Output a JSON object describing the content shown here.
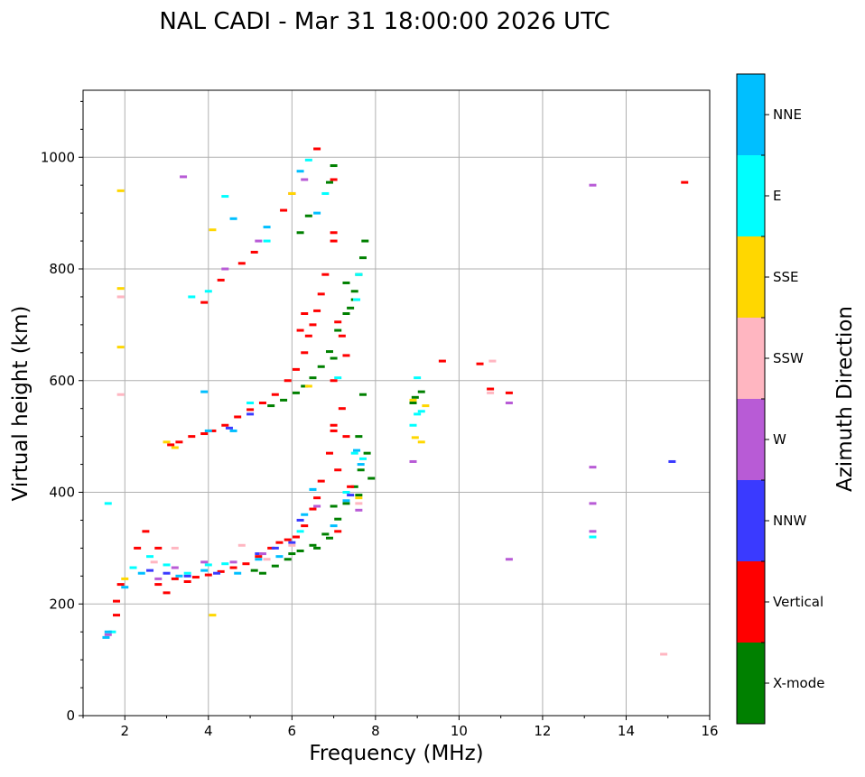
{
  "chart_data": {
    "type": "scatter",
    "title": "NAL CADI - Mar 31 18:00:00 2026 UTC",
    "xlabel": "Frequency (MHz)",
    "ylabel": "Virtual height (km)",
    "xlim": [
      1,
      16
    ],
    "ylim": [
      0,
      1120
    ],
    "xticks": [
      2,
      4,
      6,
      8,
      10,
      12,
      14,
      16
    ],
    "yticks": [
      0,
      200,
      400,
      600,
      800,
      1000
    ],
    "grid": true,
    "colorbar": {
      "label": "Azimuth Direction",
      "categories": [
        {
          "name": "X-mode",
          "color": "#008000"
        },
        {
          "name": "Vertical",
          "color": "#ff0000"
        },
        {
          "name": "NNW",
          "color": "#3a3aff"
        },
        {
          "name": "W",
          "color": "#b85bd6"
        },
        {
          "name": "SSW",
          "color": "#ffb6c1"
        },
        {
          "name": "SSE",
          "color": "#ffd700"
        },
        {
          "name": "E",
          "color": "#00ffff"
        },
        {
          "name": "NNE",
          "color": "#00bfff"
        }
      ]
    },
    "series": [
      {
        "name": "X-mode",
        "points": [
          [
            5.3,
            255
          ],
          [
            5.6,
            268
          ],
          [
            5.9,
            280
          ],
          [
            6.2,
            295
          ],
          [
            6.5,
            305
          ],
          [
            6.8,
            325
          ],
          [
            7.1,
            352
          ],
          [
            7.3,
            380
          ],
          [
            7.5,
            410
          ],
          [
            7.65,
            440
          ],
          [
            7.8,
            470
          ],
          [
            7.9,
            425
          ],
          [
            7.0,
            375
          ],
          [
            7.6,
            395
          ],
          [
            5.1,
            260
          ],
          [
            6.0,
            290
          ],
          [
            6.6,
            300
          ],
          [
            6.9,
            318
          ],
          [
            5.5,
            555
          ],
          [
            5.8,
            565
          ],
          [
            6.1,
            578
          ],
          [
            6.3,
            590
          ],
          [
            6.5,
            605
          ],
          [
            6.7,
            625
          ],
          [
            6.9,
            652
          ],
          [
            7.1,
            690
          ],
          [
            7.3,
            720
          ],
          [
            7.5,
            760
          ],
          [
            7.6,
            790
          ],
          [
            7.7,
            820
          ],
          [
            7.75,
            850
          ],
          [
            7.5,
            745
          ],
          [
            7.4,
            730
          ],
          [
            7.7,
            575
          ],
          [
            7.6,
            500
          ],
          [
            6.2,
            865
          ],
          [
            6.4,
            895
          ],
          [
            6.9,
            955
          ],
          [
            7.0,
            985
          ],
          [
            9.1,
            580
          ],
          [
            8.95,
            570
          ],
          [
            8.9,
            560
          ],
          [
            7.3,
            775
          ],
          [
            7.0,
            640
          ]
        ]
      },
      {
        "name": "Vertical",
        "points": [
          [
            1.8,
            205
          ],
          [
            1.8,
            180
          ],
          [
            1.9,
            235
          ],
          [
            2.3,
            300
          ],
          [
            2.5,
            330
          ],
          [
            2.8,
            300
          ],
          [
            2.8,
            235
          ],
          [
            3.0,
            220
          ],
          [
            3.2,
            245
          ],
          [
            3.5,
            240
          ],
          [
            3.7,
            248
          ],
          [
            4.0,
            252
          ],
          [
            4.3,
            258
          ],
          [
            4.6,
            265
          ],
          [
            4.9,
            272
          ],
          [
            5.2,
            285
          ],
          [
            5.5,
            300
          ],
          [
            5.7,
            310
          ],
          [
            5.9,
            315
          ],
          [
            6.1,
            320
          ],
          [
            6.3,
            340
          ],
          [
            6.5,
            370
          ],
          [
            6.6,
            390
          ],
          [
            6.7,
            420
          ],
          [
            6.9,
            470
          ],
          [
            7.0,
            520
          ],
          [
            7.2,
            550
          ],
          [
            7.0,
            600
          ],
          [
            7.1,
            440
          ],
          [
            7.3,
            500
          ],
          [
            7.4,
            410
          ],
          [
            7.1,
            330
          ],
          [
            3.1,
            485
          ],
          [
            3.3,
            490
          ],
          [
            3.6,
            500
          ],
          [
            3.9,
            505
          ],
          [
            4.1,
            510
          ],
          [
            4.4,
            520
          ],
          [
            4.7,
            535
          ],
          [
            5.0,
            548
          ],
          [
            5.3,
            560
          ],
          [
            5.6,
            575
          ],
          [
            5.9,
            600
          ],
          [
            6.1,
            620
          ],
          [
            6.3,
            650
          ],
          [
            6.4,
            680
          ],
          [
            6.5,
            700
          ],
          [
            6.6,
            725
          ],
          [
            6.7,
            755
          ],
          [
            6.8,
            790
          ],
          [
            6.3,
            720
          ],
          [
            6.2,
            690
          ],
          [
            7.0,
            865
          ],
          [
            7.0,
            960
          ],
          [
            7.1,
            705
          ],
          [
            7.2,
            680
          ],
          [
            7.3,
            645
          ],
          [
            7.0,
            510
          ],
          [
            3.9,
            740
          ],
          [
            4.3,
            780
          ],
          [
            4.8,
            810
          ],
          [
            5.1,
            830
          ],
          [
            5.8,
            905
          ],
          [
            6.0,
            935
          ],
          [
            6.6,
            1015
          ],
          [
            7.0,
            850
          ],
          [
            9.6,
            635
          ],
          [
            10.5,
            630
          ],
          [
            10.75,
            585
          ],
          [
            11.2,
            578
          ],
          [
            15.4,
            955
          ]
        ]
      },
      {
        "name": "NNW",
        "points": [
          [
            2.6,
            260
          ],
          [
            3.0,
            255
          ],
          [
            3.5,
            250
          ],
          [
            4.2,
            255
          ],
          [
            5.2,
            290
          ],
          [
            5.6,
            300
          ],
          [
            6.0,
            310
          ],
          [
            6.2,
            350
          ],
          [
            7.4,
            395
          ],
          [
            4.5,
            515
          ],
          [
            5.0,
            540
          ],
          [
            15.1,
            455
          ]
        ]
      },
      {
        "name": "W",
        "points": [
          [
            1.6,
            145
          ],
          [
            2.8,
            245
          ],
          [
            3.2,
            265
          ],
          [
            3.9,
            275
          ],
          [
            4.6,
            275
          ],
          [
            5.3,
            290
          ],
          [
            6.6,
            375
          ],
          [
            7.6,
            368
          ],
          [
            4.4,
            800
          ],
          [
            5.2,
            850
          ],
          [
            6.3,
            960
          ],
          [
            3.4,
            965
          ],
          [
            8.9,
            455
          ],
          [
            11.2,
            280
          ],
          [
            13.2,
            330
          ],
          [
            13.2,
            380
          ],
          [
            13.2,
            445
          ],
          [
            13.2,
            950
          ],
          [
            11.2,
            560
          ]
        ]
      },
      {
        "name": "SSW",
        "points": [
          [
            2.7,
            275
          ],
          [
            3.2,
            300
          ],
          [
            4.8,
            305
          ],
          [
            5.4,
            280
          ],
          [
            6.0,
            305
          ],
          [
            10.75,
            578
          ],
          [
            10.8,
            635
          ],
          [
            14.9,
            110
          ],
          [
            7.6,
            380
          ],
          [
            1.9,
            575
          ],
          [
            1.9,
            750
          ]
        ]
      },
      {
        "name": "SSE",
        "points": [
          [
            1.9,
            940
          ],
          [
            1.9,
            765
          ],
          [
            1.9,
            660
          ],
          [
            2.0,
            245
          ],
          [
            3.0,
            490
          ],
          [
            3.2,
            480
          ],
          [
            4.1,
            180
          ],
          [
            4.1,
            870
          ],
          [
            6.0,
            935
          ],
          [
            6.4,
            590
          ],
          [
            7.6,
            390
          ],
          [
            8.9,
            565
          ],
          [
            9.1,
            490
          ],
          [
            8.95,
            498
          ],
          [
            9.2,
            555
          ]
        ]
      },
      {
        "name": "E",
        "points": [
          [
            1.6,
            380
          ],
          [
            1.7,
            150
          ],
          [
            2.2,
            265
          ],
          [
            2.6,
            285
          ],
          [
            3.0,
            270
          ],
          [
            3.5,
            255
          ],
          [
            4.0,
            270
          ],
          [
            4.4,
            272
          ],
          [
            5.0,
            560
          ],
          [
            5.4,
            850
          ],
          [
            6.2,
            330
          ],
          [
            6.5,
            405
          ],
          [
            6.4,
            995
          ],
          [
            6.8,
            935
          ],
          [
            7.3,
            400
          ],
          [
            7.5,
            470
          ],
          [
            7.7,
            460
          ],
          [
            7.6,
            790
          ],
          [
            4.0,
            760
          ],
          [
            3.6,
            750
          ],
          [
            4.4,
            930
          ],
          [
            9.0,
            605
          ],
          [
            9.0,
            540
          ],
          [
            8.9,
            520
          ],
          [
            9.1,
            545
          ],
          [
            13.2,
            320
          ],
          [
            7.1,
            605
          ],
          [
            7.55,
            745
          ]
        ]
      },
      {
        "name": "NNE",
        "points": [
          [
            1.55,
            140
          ],
          [
            1.6,
            150
          ],
          [
            2.0,
            230
          ],
          [
            2.4,
            255
          ],
          [
            3.3,
            250
          ],
          [
            3.9,
            260
          ],
          [
            4.7,
            255
          ],
          [
            5.2,
            280
          ],
          [
            5.7,
            285
          ],
          [
            6.3,
            360
          ],
          [
            6.5,
            405
          ],
          [
            7.0,
            340
          ],
          [
            7.3,
            385
          ],
          [
            7.65,
            450
          ],
          [
            3.9,
            580
          ],
          [
            4.6,
            890
          ],
          [
            6.2,
            975
          ],
          [
            6.6,
            900
          ],
          [
            4.0,
            510
          ],
          [
            4.6,
            510
          ],
          [
            5.4,
            875
          ],
          [
            7.55,
            475
          ]
        ]
      }
    ]
  }
}
